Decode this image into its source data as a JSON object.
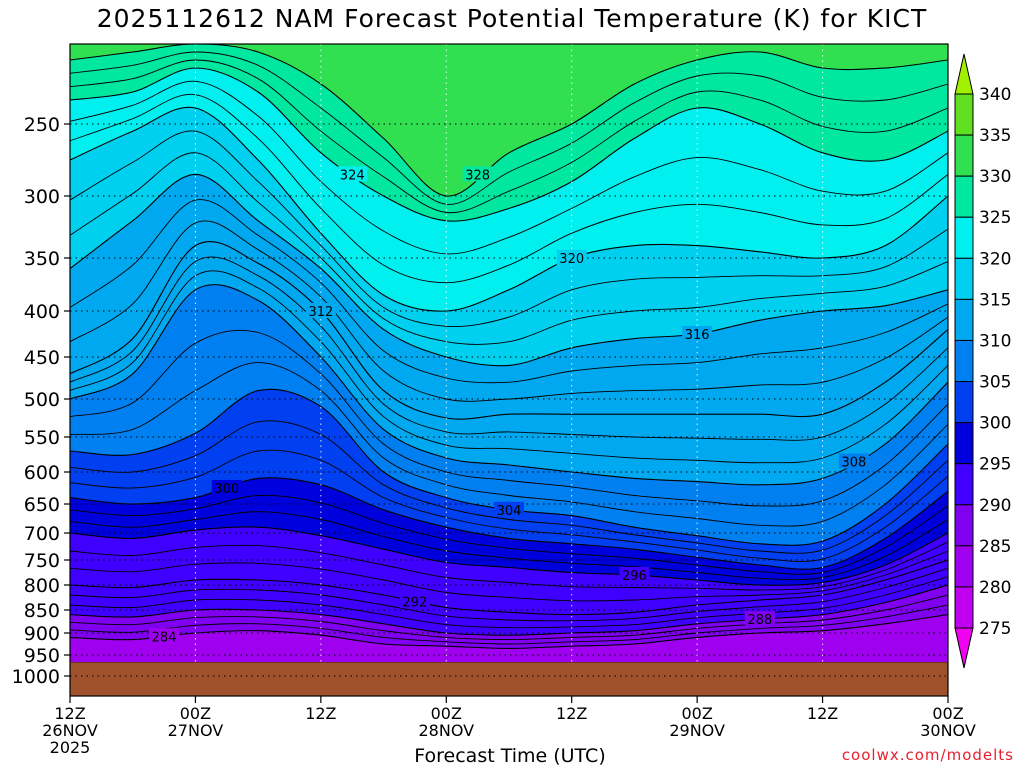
{
  "chart_data": {
    "type": "area",
    "title": "2025112612 NAM Forecast Potential Temperature (K) for KICT",
    "xlabel": "Forecast Time (UTC)",
    "ylabel": "",
    "credit": "coolwx.com/modelts",
    "x_ticks": [
      {
        "hour": 0,
        "line1": "12Z",
        "line2": "26NOV",
        "line3": "2025"
      },
      {
        "hour": 12,
        "line1": "00Z",
        "line2": "27NOV",
        "line3": ""
      },
      {
        "hour": 24,
        "line1": "12Z",
        "line2": "",
        "line3": ""
      },
      {
        "hour": 36,
        "line1": "00Z",
        "line2": "28NOV",
        "line3": ""
      },
      {
        "hour": 48,
        "line1": "12Z",
        "line2": "",
        "line3": ""
      },
      {
        "hour": 60,
        "line1": "00Z",
        "line2": "29NOV",
        "line3": ""
      },
      {
        "hour": 72,
        "line1": "12Z",
        "line2": "",
        "line3": ""
      },
      {
        "hour": 84,
        "line1": "00Z",
        "line2": "30NOV",
        "line3": ""
      }
    ],
    "xlim": [
      0,
      84
    ],
    "y_ticks": [
      "250",
      "300",
      "350",
      "400",
      "450",
      "500",
      "550",
      "600",
      "650",
      "700",
      "750",
      "800",
      "850",
      "900",
      "950",
      "1000"
    ],
    "y_tick_values": [
      250,
      300,
      350,
      400,
      450,
      500,
      550,
      600,
      650,
      700,
      750,
      800,
      850,
      900,
      950,
      1000
    ],
    "ylim": [
      200,
      1030
    ],
    "y_scale": "inverted",
    "grid": true,
    "surface_pressure_hPa": 968,
    "colorbar": {
      "labels": [
        "275",
        "280",
        "285",
        "290",
        "295",
        "300",
        "305",
        "310",
        "315",
        "320",
        "325",
        "330",
        "335",
        "340"
      ],
      "levels": [
        275,
        280,
        285,
        290,
        295,
        300,
        305,
        310,
        315,
        320,
        325,
        330,
        335,
        340
      ],
      "colors": [
        "#f000f0",
        "#c000f0",
        "#a000f0",
        "#8000f0",
        "#4000ff",
        "#0000dd",
        "#0040f0",
        "#0080f0",
        "#00a8f0",
        "#00d0f0",
        "#00f0f0",
        "#00e8a0",
        "#30e050",
        "#60e020",
        "#a0f000"
      ]
    },
    "sample_hours": [
      0,
      6,
      12,
      18,
      24,
      30,
      36,
      42,
      48,
      54,
      60,
      66,
      72,
      78,
      84
    ],
    "isentropes": [
      {
        "theta": 284,
        "label": "284",
        "pressure": [
          910,
          915,
          900,
          895,
          905,
          925,
          930,
          935,
          930,
          925,
          910,
          900,
          895,
          880,
          860
        ]
      },
      {
        "theta": 288,
        "label": "288",
        "pressure": [
          860,
          865,
          850,
          850,
          860,
          880,
          900,
          905,
          900,
          895,
          880,
          870,
          860,
          835,
          800
        ]
      },
      {
        "theta": 292,
        "label": "292",
        "pressure": [
          800,
          805,
          790,
          790,
          800,
          820,
          845,
          855,
          860,
          855,
          840,
          830,
          820,
          790,
          750
        ]
      },
      {
        "theta": 296,
        "label": "296",
        "pressure": [
          700,
          710,
          695,
          690,
          705,
          730,
          755,
          765,
          775,
          780,
          790,
          800,
          795,
          760,
          700
        ]
      },
      {
        "theta": 300,
        "label": "300",
        "pressure": [
          640,
          650,
          640,
          610,
          620,
          660,
          690,
          710,
          720,
          730,
          745,
          760,
          765,
          710,
          630
        ]
      },
      {
        "theta": 304,
        "label": "304",
        "pressure": [
          570,
          575,
          545,
          490,
          510,
          600,
          640,
          660,
          670,
          690,
          705,
          720,
          715,
          650,
          560
        ]
      },
      {
        "theta": 308,
        "label": "308",
        "pressure": [
          500,
          470,
          380,
          390,
          450,
          540,
          580,
          590,
          600,
          610,
          615,
          620,
          610,
          560,
          480
        ]
      },
      {
        "theta": 312,
        "label": "312",
        "pressure": [
          470,
          430,
          340,
          355,
          400,
          490,
          525,
          520,
          520,
          520,
          520,
          520,
          520,
          480,
          420
        ]
      },
      {
        "theta": 316,
        "label": "316",
        "pressure": [
          360,
          320,
          285,
          320,
          360,
          420,
          450,
          460,
          440,
          430,
          425,
          410,
          400,
          395,
          380
        ]
      },
      {
        "theta": 320,
        "label": "320",
        "pressure": [
          275,
          255,
          240,
          275,
          330,
          385,
          400,
          380,
          350,
          340,
          340,
          345,
          350,
          340,
          300
        ]
      },
      {
        "theta": 324,
        "label": "324",
        "pressure": [
          235,
          230,
          215,
          230,
          270,
          300,
          320,
          310,
          290,
          260,
          240,
          250,
          270,
          275,
          255
        ]
      },
      {
        "theta": 328,
        "label": "328",
        "pressure": [
          210,
          205,
          200,
          205,
          225,
          260,
          300,
          270,
          250,
          225,
          210,
          205,
          215,
          215,
          210
        ]
      }
    ]
  }
}
